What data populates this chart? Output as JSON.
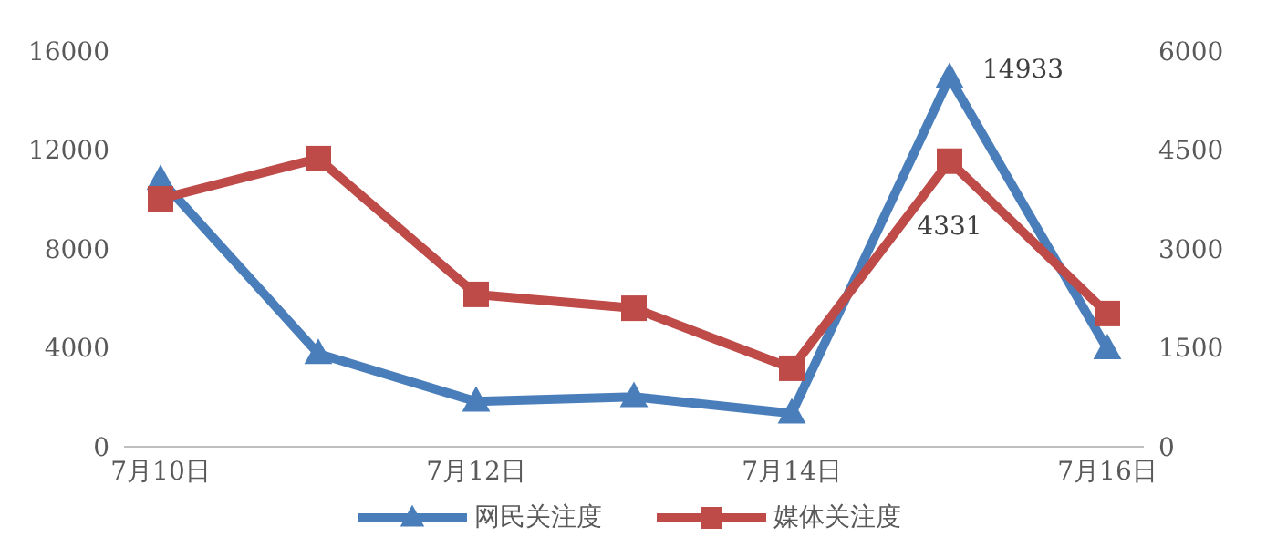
{
  "chart_data": {
    "type": "line",
    "categories": [
      "7月10日",
      null,
      "7月12日",
      null,
      "7月14日",
      null,
      "7月16日"
    ],
    "series": [
      {
        "name": "网民关注度",
        "color": "#4a7ebb",
        "marker": "triangle",
        "values": [
          10800,
          3760,
          1830,
          2020,
          1350,
          14933,
          3950
        ],
        "value_labels": [
          null,
          null,
          null,
          null,
          null,
          "14933",
          null
        ]
      },
      {
        "name": "媒体关注度",
        "color": "#be4b48",
        "marker": "square",
        "axis": "y2",
        "values": [
          3760,
          4370,
          2310,
          2100,
          1190,
          4331,
          2020
        ],
        "value_labels": [
          null,
          null,
          null,
          null,
          null,
          "4331",
          null
        ]
      }
    ],
    "ylim": [
      0,
      16000
    ],
    "yticks": [
      0,
      4000,
      8000,
      12000,
      16000
    ],
    "y2lim": [
      0,
      6000
    ],
    "y2ticks": [
      0,
      1500,
      3000,
      4500,
      6000
    ],
    "grid": false,
    "legend": "bottom"
  }
}
